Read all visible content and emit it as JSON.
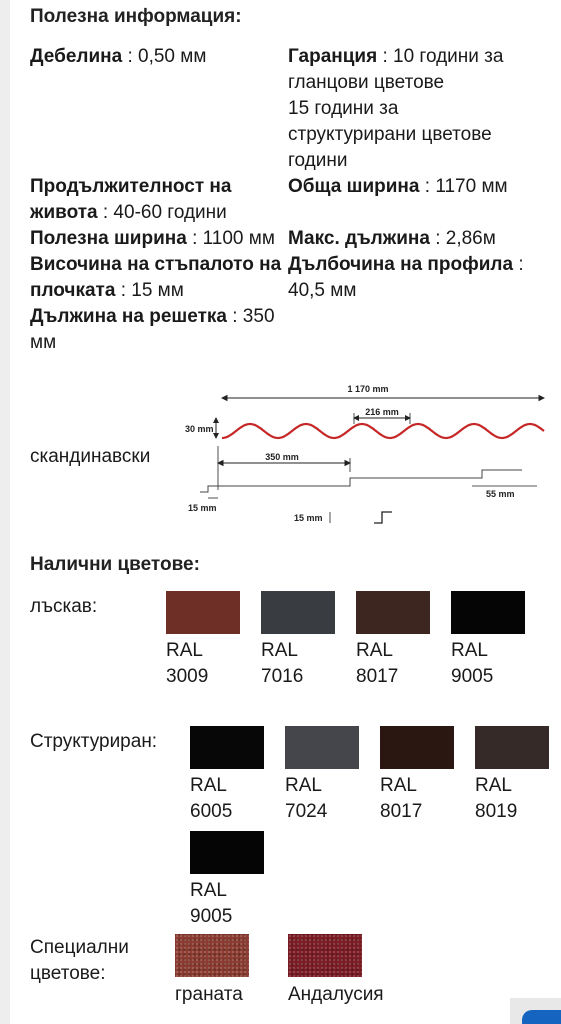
{
  "useful_info": {
    "title": "Полезна информация:",
    "thickness": {
      "label": "Дебелина",
      "value": " : 0,50 мм"
    },
    "warranty": {
      "label": "Гаранция",
      "value_1": " : 10 години за",
      "value_2": "гланцови цветове",
      "value_3": "15 години за",
      "value_4": "структурирани цветове",
      "value_5": "години"
    },
    "lifespan": {
      "label_1": "Продължителност на",
      "label_2": "живота",
      "value": " : 40-60 години"
    },
    "total_width": {
      "label": "Обща ширина",
      "value": " : 1170 мм"
    },
    "useful_width": {
      "label": "Полезна ширина",
      "value": " : 1100 мм"
    },
    "max_length": {
      "label": "Макс. дължина",
      "value": " : 2,86м"
    },
    "step_height": {
      "label_1": "Височина на стъпалото на",
      "label_2": "плочката",
      "value": " : 15 мм"
    },
    "profile_depth": {
      "label": "Дълбочина на профила",
      "value_1": " :",
      "value_2": "40,5 мм"
    },
    "grid_length": {
      "label": "Дължина на решетка",
      "value_1": " : 350",
      "value_2": "мм"
    }
  },
  "profile": {
    "label": "скандинавски",
    "dim_total": "1 170 mm",
    "dim_wave": "216 mm",
    "dim_height": "30 mm",
    "dim_grid": "350 mm",
    "dim_step_left": "15 mm",
    "dim_step_right": "55 mm",
    "dim_step_bottom": "15 mm",
    "profile_color": "#c62828"
  },
  "colors": {
    "title": "Налични цветове:",
    "glossy": {
      "label": "лъскав:",
      "items": [
        {
          "line1": "RAL",
          "line2": "3009",
          "color": "#6e2f26"
        },
        {
          "line1": "RAL",
          "line2": "7016",
          "color": "#393c40"
        },
        {
          "line1": "RAL",
          "line2": "8017",
          "color": "#3d2520"
        },
        {
          "line1": "RAL",
          "line2": "9005",
          "color": "#050505"
        }
      ]
    },
    "structured": {
      "label": "Структуриран:",
      "items": [
        {
          "line1": "RAL",
          "line2": "6005",
          "color": "#070707"
        },
        {
          "line1": "RAL",
          "line2": "7024",
          "color": "#44464b"
        },
        {
          "line1": "RAL",
          "line2": "8017",
          "color": "#2a1712"
        },
        {
          "line1": "RAL",
          "line2": "8019",
          "color": "#352a27"
        },
        {
          "line1": "RAL",
          "line2": "9005",
          "color": "#050505"
        }
      ]
    },
    "special": {
      "label_1": "Специални",
      "label_2": "цветове:",
      "items": [
        {
          "name": "граната",
          "color": "#8a3a2e"
        },
        {
          "name": "Андалусия",
          "color": "#7a1a22"
        }
      ]
    }
  }
}
